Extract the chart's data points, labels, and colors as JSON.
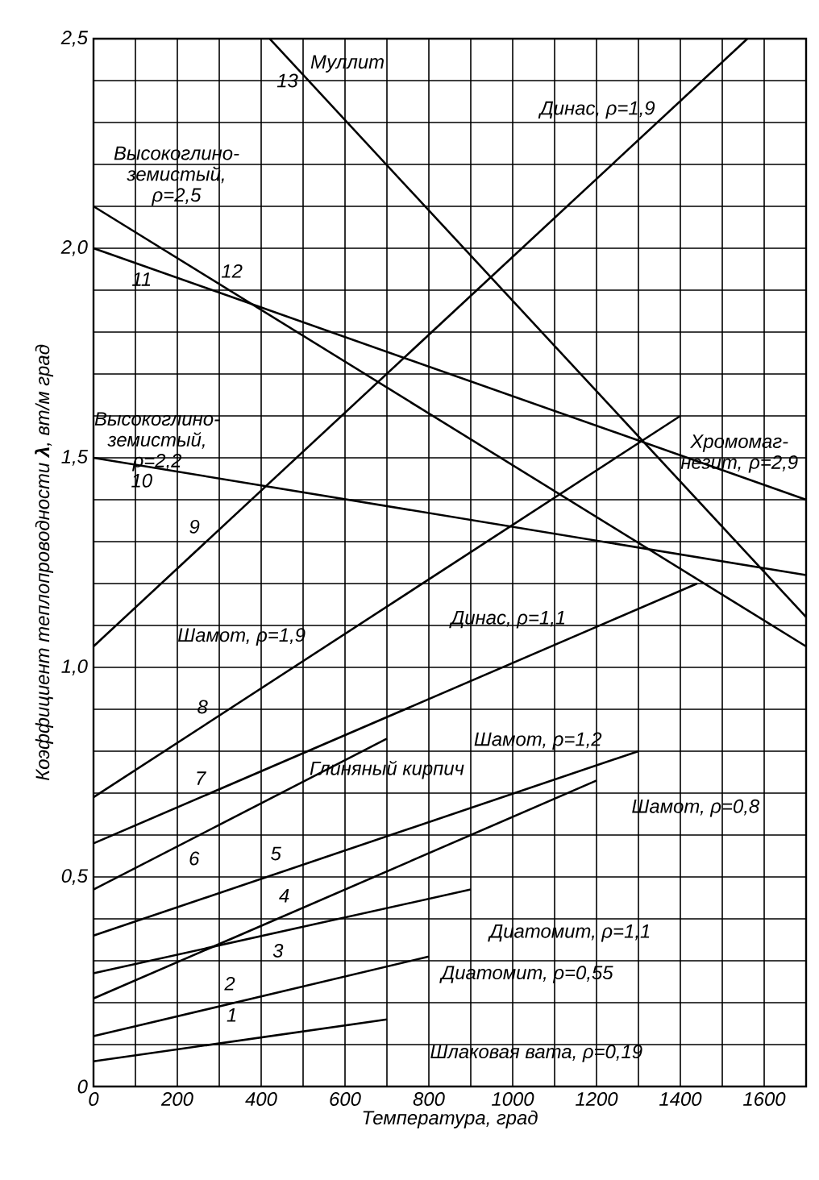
{
  "chart_data": {
    "type": "line",
    "xlabel": "Температура, град",
    "ylabel": "Коэффициент теплопроводности **λ**, вт/м град",
    "xlim": [
      0,
      1700
    ],
    "ylim": [
      0,
      2.5
    ],
    "xticks": [
      0,
      {
        "value": 100,
        "label": null
      },
      200,
      {
        "value": 300,
        "label": null
      },
      400,
      {
        "value": 500,
        "label": null
      },
      600,
      {
        "value": 700,
        "label": null
      },
      800,
      {
        "value": 900,
        "label": null
      },
      1000,
      {
        "value": 1100,
        "label": null
      },
      1200,
      {
        "value": 1300,
        "label": null
      },
      1400,
      {
        "value": 1500,
        "label": null
      },
      1600,
      {
        "value": 1700,
        "label": null
      }
    ],
    "yticks": [
      0,
      {
        "value": 0.1,
        "label": null
      },
      {
        "value": 0.2,
        "label": null
      },
      {
        "value": 0.3,
        "label": null
      },
      {
        "value": 0.4,
        "label": null
      },
      {
        "value": 0.5,
        "label": "0,5"
      },
      {
        "value": 0.6,
        "label": null
      },
      {
        "value": 0.7,
        "label": null
      },
      {
        "value": 0.8,
        "label": null
      },
      {
        "value": 0.9,
        "label": null
      },
      {
        "value": 1.0,
        "label": "1,0"
      },
      {
        "value": 1.1,
        "label": null
      },
      {
        "value": 1.2,
        "label": null
      },
      {
        "value": 1.3,
        "label": null
      },
      {
        "value": 1.4,
        "label": null
      },
      {
        "value": 1.5,
        "label": "1,5"
      },
      {
        "value": 1.6,
        "label": null
      },
      {
        "value": 1.7,
        "label": null
      },
      {
        "value": 1.8,
        "label": null
      },
      {
        "value": 1.9,
        "label": null
      },
      {
        "value": 2.0,
        "label": "2,0"
      },
      {
        "value": 2.1,
        "label": null
      },
      {
        "value": 2.2,
        "label": null
      },
      {
        "value": 2.3,
        "label": null
      },
      {
        "value": 2.4,
        "label": null
      },
      {
        "value": 2.5,
        "label": "2,5"
      }
    ],
    "grid": true,
    "marker": "none",
    "line_style": "solid",
    "series": [
      {
        "color": "#000000",
        "x": [
          0,
          700
        ],
        "values": [
          0.06,
          0.16
        ]
      },
      {
        "color": "#000000",
        "x": [
          0,
          800
        ],
        "values": [
          0.12,
          0.31
        ]
      },
      {
        "color": "#000000",
        "x": [
          0,
          900
        ],
        "values": [
          0.27,
          0.47
        ]
      },
      {
        "color": "#000000",
        "x": [
          0,
          1200
        ],
        "values": [
          0.21,
          0.73
        ]
      },
      {
        "color": "#000000",
        "x": [
          0,
          1300
        ],
        "values": [
          0.36,
          0.8
        ]
      },
      {
        "color": "#000000",
        "x": [
          0,
          700
        ],
        "values": [
          0.47,
          0.83
        ]
      },
      {
        "color": "#000000",
        "x": [
          0,
          1440
        ],
        "values": [
          0.58,
          1.2
        ]
      },
      {
        "color": "#000000",
        "x": [
          0,
          1400
        ],
        "values": [
          0.69,
          1.6
        ]
      },
      {
        "color": "#000000",
        "x": [
          0,
          1560
        ],
        "values": [
          1.05,
          2.5
        ]
      },
      {
        "color": "#000000",
        "x": [
          0,
          1700
        ],
        "values": [
          1.5,
          1.22
        ]
      },
      {
        "color": "#000000",
        "x": [
          0,
          1700
        ],
        "values": [
          2.0,
          1.4
        ]
      },
      {
        "color": "#000000",
        "x": [
          0,
          1700
        ],
        "values": [
          2.1,
          1.05
        ]
      },
      {
        "color": "#000000",
        "x": [
          420,
          1700
        ],
        "values": [
          2.5,
          1.12
        ]
      }
    ],
    "annotations": [
      {
        "text": "1",
        "x": 330,
        "y": 0.11
      },
      {
        "text": "2",
        "x": 325,
        "y": 0.2
      },
      {
        "text": "3",
        "x": 440,
        "y": 0.37
      },
      {
        "text": "4",
        "x": 455,
        "y": 0.41
      },
      {
        "text": "5",
        "x": 435,
        "y": 0.51
      },
      {
        "text": "6",
        "x": 240,
        "y": 0.59
      },
      {
        "text": "7",
        "x": 255,
        "y": 0.69
      },
      {
        "text": "8",
        "x": 260,
        "y": 0.86
      },
      {
        "text": "9",
        "x": 260,
        "y": 1.29
      },
      {
        "text": "10",
        "x": 115,
        "y": 1.48
      },
      {
        "text": "11",
        "x": 115,
        "y": 1.96
      },
      {
        "text": "12",
        "x": 330,
        "y": 1.9
      },
      {
        "text": "13",
        "x": 510,
        "y": 2.4
      },
      {
        "text": "Муллит",
        "x": 480,
        "y": 2.44
      },
      {
        "text": "Динас, ρ=1,9",
        "x": 1377,
        "y": 2.33
      },
      {
        "text": "Высокоглино-земистый, ρ=2,5",
        "x": 30,
        "y": 2.08
      },
      {
        "text": "Высокоглино-земистый, ρ=2,2",
        "x": 320,
        "y": 1.45
      },
      {
        "text": "Хромомаг-незит, ρ=2,9",
        "x": 1560,
        "y": 1.45
      },
      {
        "text": "Шамот, ρ=1,9",
        "x": 520,
        "y": 1.03
      },
      {
        "text": "Динас, ρ=1,1",
        "x": 990,
        "y": 1.01
      },
      {
        "text": "Шамот, ρ=1,2",
        "x": 1060,
        "y": 0.72
      },
      {
        "text": "Глиняный кирпич",
        "x": 700,
        "y": 0.83
      },
      {
        "text": "Шамот, ρ=0,8",
        "x": 1200,
        "y": 0.73
      },
      {
        "text": "Диатомит, ρ=1,1",
        "x": 900,
        "y": 0.47
      },
      {
        "text": "Диатомит, ρ=0,55",
        "x": 800,
        "y": 0.31
      },
      {
        "text": "Шлаковая вата, ρ=0,19",
        "x": 700,
        "y": 0.16
      }
    ]
  }
}
